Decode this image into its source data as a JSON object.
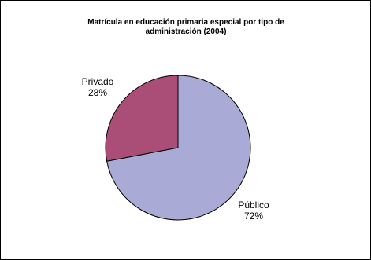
{
  "chart_data": {
    "type": "pie",
    "title_lines": [
      "Matrícula en educación primaria especial por tipo de",
      "administración (2004)"
    ],
    "slices": [
      {
        "name": "Público",
        "value": 72,
        "value_label": "72%",
        "color": "#aaaad6"
      },
      {
        "name": "Privado",
        "value": 28,
        "value_label": "28%",
        "color": "#aa4d77"
      }
    ],
    "legend": "none"
  }
}
